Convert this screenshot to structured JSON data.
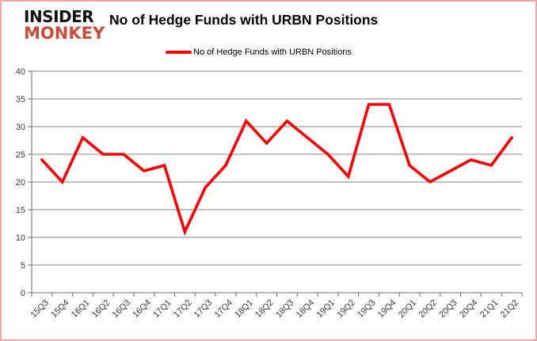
{
  "branding": {
    "logo_line1": "INSIDER",
    "logo_line2": "MONKEY",
    "logo_line2_color": "#c94b38"
  },
  "header": {
    "title": "No of Hedge Funds with URBN Positions"
  },
  "legend": {
    "label": "No of Hedge Funds with URBN Positions",
    "line_color": "#ff0000"
  },
  "chart_data": {
    "type": "line",
    "title": "No of Hedge Funds with URBN Positions",
    "categories": [
      "15Q3",
      "15Q4",
      "16Q1",
      "16Q2",
      "16Q3",
      "16Q4",
      "17Q1",
      "17Q2",
      "17Q3",
      "17Q4",
      "18Q1",
      "18Q2",
      "18Q3",
      "18Q4",
      "19Q1",
      "19Q2",
      "19Q3",
      "19Q4",
      "20Q1",
      "20Q2",
      "20Q3",
      "20Q4",
      "21Q1",
      "21Q2"
    ],
    "series": [
      {
        "name": "No of Hedge Funds with URBN Positions",
        "color": "#ff0000",
        "values": [
          24,
          20,
          28,
          25,
          25,
          22,
          23,
          11,
          19,
          23,
          31,
          27,
          31,
          28,
          25,
          21,
          34,
          34,
          23,
          20,
          22,
          24,
          23,
          28
        ]
      }
    ],
    "ylim": [
      0,
      40
    ],
    "yticks": [
      0,
      5,
      10,
      15,
      20,
      25,
      30,
      35,
      40
    ],
    "grid": true,
    "legend_position": "top",
    "colors": {
      "gridline": "#848484",
      "axis": "#6e6e6e",
      "tick_label": "#3d3d3d"
    }
  }
}
